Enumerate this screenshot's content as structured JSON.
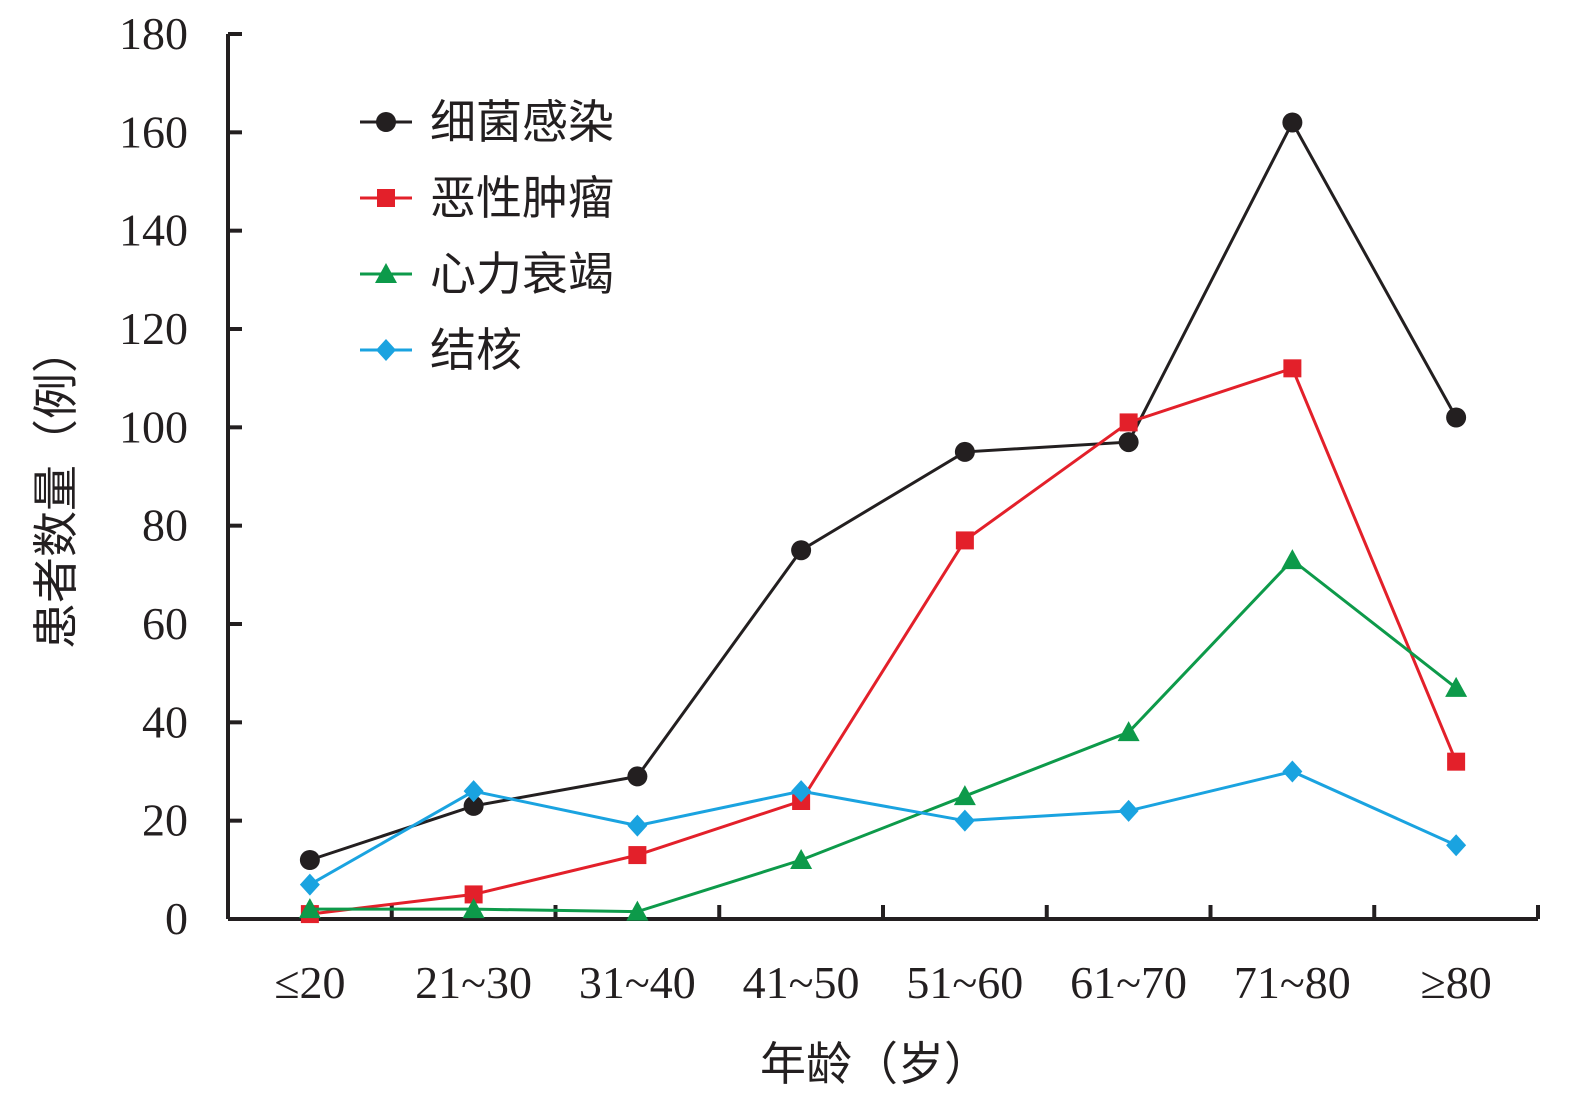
{
  "chart_data": {
    "type": "line",
    "title": "",
    "xlabel": "年龄（岁）",
    "ylabel": "患者数量（例）",
    "categories": [
      "≤20",
      "21~30",
      "31~40",
      "41~50",
      "51~60",
      "61~70",
      "71~80",
      "≥80"
    ],
    "ylim": [
      0,
      180
    ],
    "yticks": [
      0,
      20,
      40,
      60,
      80,
      100,
      120,
      140,
      160,
      180
    ],
    "grid": false,
    "legend_position": "top-left",
    "series": [
      {
        "name": "细菌感染",
        "color": "#231f20",
        "marker": "circle",
        "values": [
          12,
          23,
          29,
          75,
          95,
          97,
          162,
          102
        ]
      },
      {
        "name": "恶性肿瘤",
        "color": "#e3202a",
        "marker": "square",
        "values": [
          1,
          5,
          13,
          24,
          77,
          101,
          112,
          32
        ]
      },
      {
        "name": "心力衰竭",
        "color": "#0d9a4a",
        "marker": "triangle",
        "values": [
          2,
          2,
          1.5,
          12,
          25,
          38,
          73,
          47
        ]
      },
      {
        "name": "结核",
        "color": "#1aa3e0",
        "marker": "diamond",
        "values": [
          7,
          26,
          19,
          26,
          20,
          22,
          30,
          15
        ]
      }
    ]
  }
}
